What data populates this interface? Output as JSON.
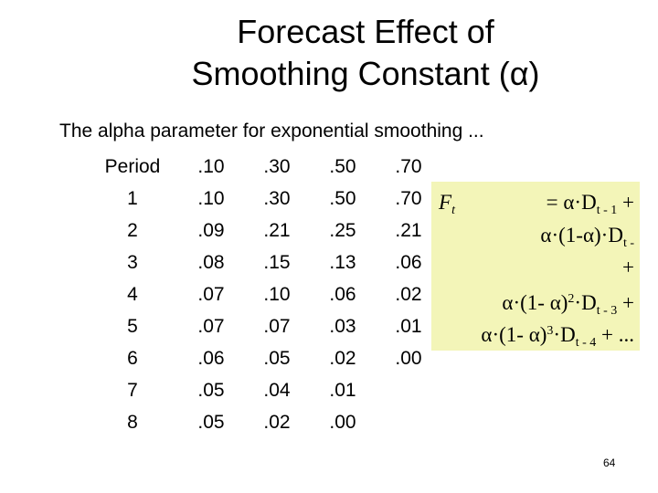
{
  "slide": {
    "title_line1": "Forecast Effect of",
    "title_line2": "Smoothing Constant (α)",
    "intro": "The alpha parameter for exponential smoothing ...",
    "page_number": "64"
  },
  "table": {
    "headers": [
      "Period",
      ".10",
      ".30",
      ".50",
      ".70"
    ],
    "rows": [
      [
        "1",
        ".10",
        ".30",
        ".50",
        ".70"
      ],
      [
        "2",
        ".09",
        ".21",
        ".25",
        ".21"
      ],
      [
        "3",
        ".08",
        ".15",
        ".13",
        ".06"
      ],
      [
        "4",
        ".07",
        ".10",
        ".06",
        ".02"
      ],
      [
        "5",
        ".07",
        ".07",
        ".03",
        ".01"
      ],
      [
        "6",
        ".06",
        ".05",
        ".02",
        ".00"
      ],
      [
        "7",
        ".05",
        ".04",
        ".01",
        ""
      ],
      [
        "8",
        ".05",
        ".02",
        ".00",
        ""
      ]
    ]
  },
  "formula": {
    "background": "#f3f5b8",
    "F": "F",
    "F_sub": "t",
    "eq_alpha": "= α·D",
    "D1_sub": "t - 1",
    "plus1": "+",
    "l2_main": "α·(1-α)·D",
    "D2_sub": "t -",
    "plus2": "+",
    "l4_main": "α·(1- α)",
    "exp2": "2",
    "l4_D": "·D",
    "D3_sub": "t - 3",
    "plus3": "+",
    "l5_main": "α·(1- α)",
    "exp3": "3",
    "l5_D": "·D",
    "D4_sub": "t - 4",
    "tail": "+ ..."
  }
}
